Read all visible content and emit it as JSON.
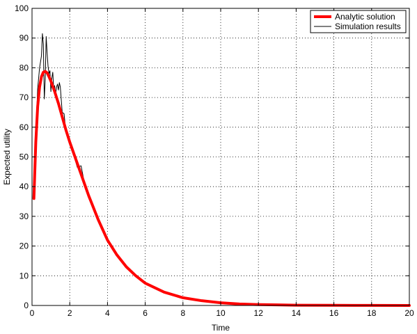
{
  "chart_data": {
    "type": "line",
    "title": "",
    "xlabel": "Time",
    "ylabel": "Expected utility",
    "xlim": [
      0,
      20
    ],
    "ylim": [
      0,
      100
    ],
    "x_ticks": [
      0,
      2,
      4,
      6,
      8,
      10,
      12,
      14,
      16,
      18,
      20
    ],
    "y_ticks": [
      0,
      10,
      20,
      30,
      40,
      50,
      60,
      70,
      80,
      90,
      100
    ],
    "grid": true,
    "grid_style": "dotted",
    "legend_position": "top-right",
    "series": [
      {
        "name": "Analytic solution",
        "color": "#ff0000",
        "style": "thick-solid",
        "x": [
          0.1,
          0.2,
          0.3,
          0.4,
          0.5,
          0.6,
          0.7,
          0.8,
          0.9,
          1.0,
          1.2,
          1.4,
          1.6,
          1.8,
          2.0,
          2.5,
          3.0,
          3.5,
          4.0,
          4.5,
          5.0,
          5.5,
          6.0,
          7.0,
          8.0,
          9.0,
          10.0,
          11.0,
          12.0,
          13.0,
          14.0,
          16.0,
          18.0,
          20.0
        ],
        "y": [
          36.0,
          55.0,
          67.0,
          73.5,
          77.0,
          78.5,
          78.8,
          78.3,
          77.0,
          75.5,
          72.0,
          68.0,
          63.5,
          59.0,
          55.0,
          46.0,
          37.0,
          29.0,
          22.0,
          17.0,
          13.0,
          10.0,
          7.5,
          4.5,
          2.6,
          1.6,
          0.9,
          0.5,
          0.3,
          0.2,
          0.1,
          0.05,
          0.02,
          0.0
        ]
      },
      {
        "name": "Simulation results",
        "color": "#000000",
        "style": "thin-solid",
        "x": [
          0.1,
          0.2,
          0.3,
          0.4,
          0.5,
          0.55,
          0.6,
          0.65,
          0.7,
          0.75,
          0.8,
          0.85,
          0.9,
          0.95,
          1.0,
          1.05,
          1.1,
          1.15,
          1.2,
          1.25,
          1.3,
          1.35,
          1.4,
          1.45,
          1.5,
          1.6,
          1.7,
          1.8,
          1.9,
          2.0,
          2.2,
          2.4,
          2.6,
          2.8,
          3.0,
          3.5,
          4.0,
          4.5,
          5.0,
          5.5,
          6.0,
          7.0,
          8.0,
          9.0,
          10.0,
          11.0,
          12.0,
          13.0,
          14.0,
          16.0,
          18.0,
          20.0
        ],
        "y": [
          36.0,
          58.0,
          73.0,
          80.0,
          84.0,
          91.5,
          88.0,
          69.5,
          76.0,
          90.5,
          85.0,
          80.5,
          78.0,
          79.0,
          72.0,
          76.5,
          78.5,
          73.0,
          74.0,
          71.0,
          73.5,
          74.5,
          72.5,
          75.0,
          73.5,
          65.0,
          64.5,
          58.0,
          57.0,
          55.5,
          51.0,
          46.5,
          47.0,
          40.5,
          37.0,
          29.5,
          22.0,
          17.0,
          13.0,
          10.0,
          7.5,
          4.5,
          2.6,
          1.6,
          0.9,
          0.5,
          0.3,
          0.2,
          0.1,
          0.05,
          0.02,
          0.0
        ]
      }
    ]
  }
}
